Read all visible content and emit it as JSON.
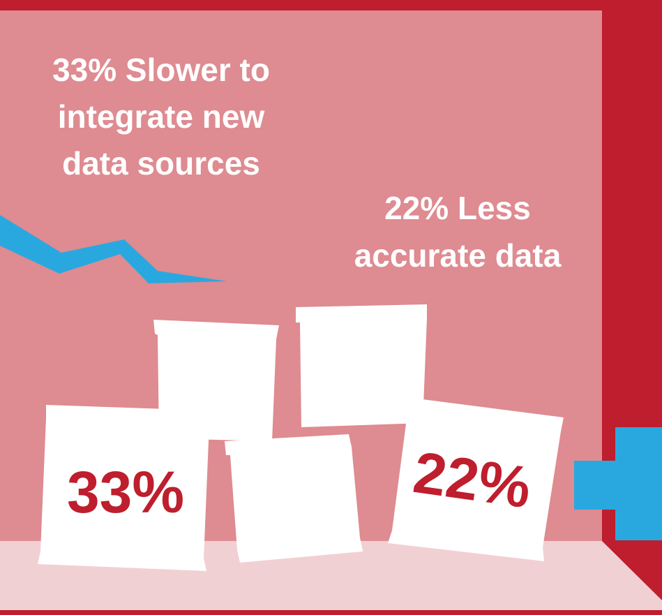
{
  "left_callout": {
    "lines": [
      "33% Slower to",
      "integrate new",
      "data sources"
    ]
  },
  "right_callout": {
    "lines": [
      "22% Less",
      "accurate data"
    ]
  },
  "can_labels": [
    "33%",
    "22%"
  ]
}
